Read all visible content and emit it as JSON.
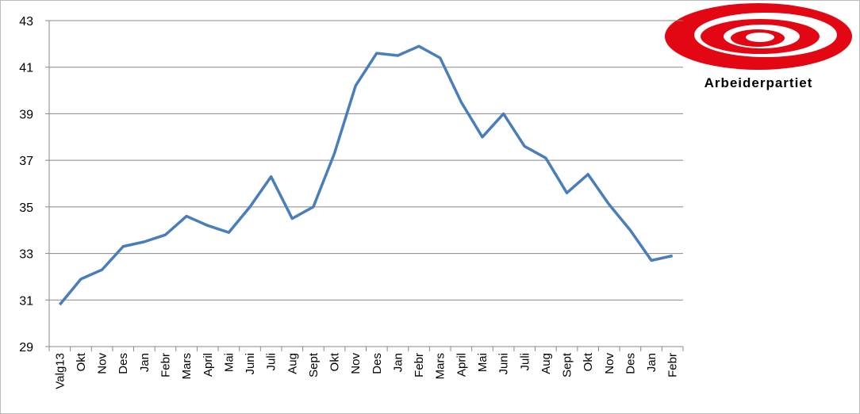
{
  "chart_data": {
    "type": "line",
    "categories": [
      "Valg13",
      "Okt",
      "Nov",
      "Des",
      "Jan",
      "Febr",
      "Mars",
      "April",
      "Mai",
      "Juni",
      "Juli",
      "Aug",
      "Sept",
      "Okt",
      "Nov",
      "Des",
      "Jan",
      "Febr",
      "Mars",
      "April",
      "Mai",
      "Juni",
      "Juli",
      "Aug",
      "Sept",
      "Okt",
      "Nov",
      "Des",
      "Jan",
      "Febr"
    ],
    "values": [
      30.8,
      31.9,
      32.3,
      33.3,
      33.5,
      33.8,
      34.6,
      34.2,
      33.9,
      35.0,
      36.3,
      34.5,
      35.0,
      37.3,
      40.2,
      41.6,
      41.5,
      41.9,
      41.4,
      39.5,
      38.0,
      39.0,
      37.6,
      37.1,
      35.6,
      36.4,
      35.1,
      34.0,
      32.7,
      32.9
    ],
    "color": "#4a7ebb",
    "ylim": [
      29,
      43
    ],
    "yticks": [
      29,
      31,
      33,
      35,
      37,
      39,
      41,
      43
    ],
    "grid": true
  },
  "logo": {
    "text": "Arbeiderpartiet"
  }
}
